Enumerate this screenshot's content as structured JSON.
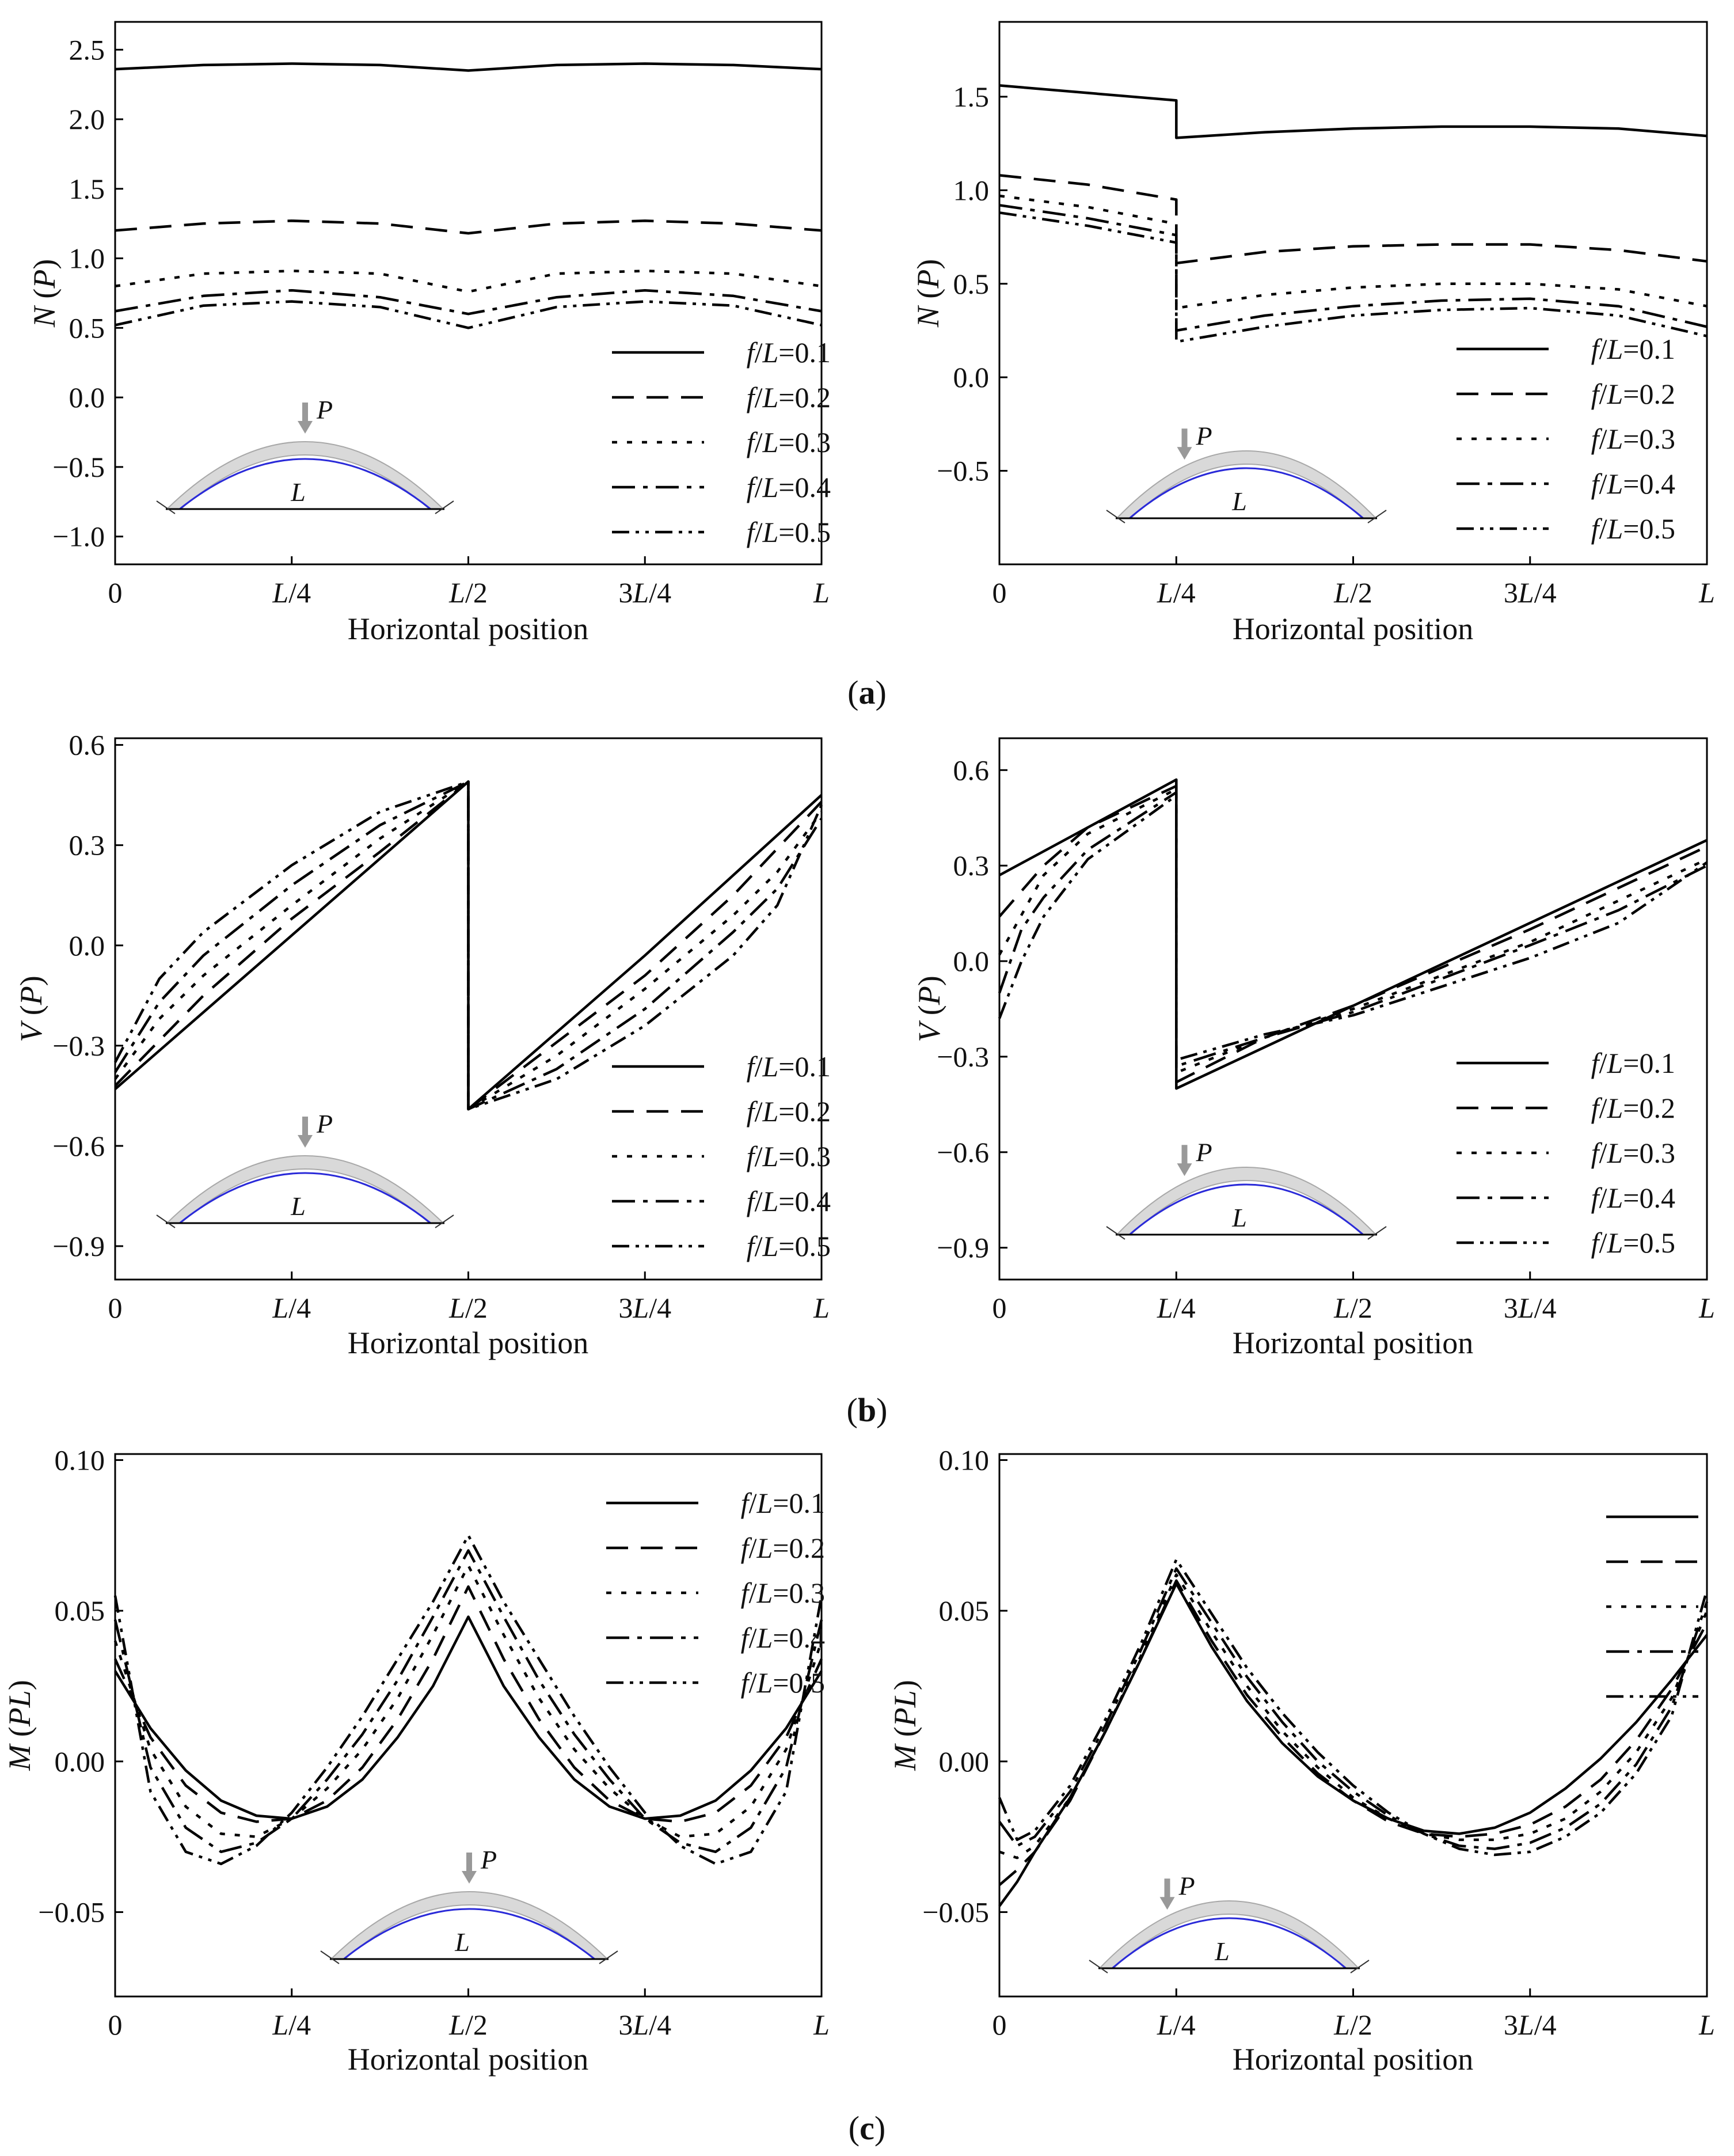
{
  "figure": {
    "x_label": "Horizontal position",
    "x_ticks": [
      "0",
      "L/4",
      "L/2",
      "3L/4",
      "L"
    ],
    "inset_load": "P",
    "inset_span": "L",
    "legend": [
      "f/L=0.1",
      "f/L=0.2",
      "f/L=0.3",
      "f/L=0.4",
      "f/L=0.5"
    ],
    "captions": [
      "a",
      "b",
      "c"
    ],
    "line_color": "#000000",
    "arch_fill": "#d9d9d9",
    "arch_axis_color": "#2a2ad8",
    "load_arrow_color": "#999999"
  },
  "chart_data": [
    {
      "type": "line",
      "id": "a-left",
      "ylabel_symbol": "N",
      "ylabel_unit": "P",
      "load_position": "L/2",
      "ylim": [
        -1.2,
        2.7
      ],
      "yticks": [
        2.5,
        2.0,
        1.5,
        1.0,
        0.5,
        0.0,
        -0.5,
        -1.0
      ],
      "ytick_labels": [
        "2.5",
        "2.0",
        "1.5",
        "1.0",
        "0.5",
        "0.0",
        "−0.5",
        "−1.0"
      ],
      "x": [
        0,
        0.125,
        0.25,
        0.375,
        0.5,
        0.625,
        0.75,
        0.875,
        1.0
      ],
      "series": [
        {
          "name": "f/L=0.1",
          "values": [
            2.36,
            2.39,
            2.4,
            2.39,
            2.35,
            2.39,
            2.4,
            2.39,
            2.36
          ]
        },
        {
          "name": "f/L=0.2",
          "values": [
            1.2,
            1.25,
            1.27,
            1.25,
            1.18,
            1.25,
            1.27,
            1.25,
            1.2
          ]
        },
        {
          "name": "f/L=0.3",
          "values": [
            0.8,
            0.89,
            0.91,
            0.89,
            0.76,
            0.89,
            0.91,
            0.89,
            0.8
          ]
        },
        {
          "name": "f/L=0.4",
          "values": [
            0.62,
            0.73,
            0.77,
            0.72,
            0.6,
            0.72,
            0.77,
            0.73,
            0.62
          ]
        },
        {
          "name": "f/L=0.5",
          "values": [
            0.52,
            0.66,
            0.69,
            0.65,
            0.5,
            0.65,
            0.69,
            0.66,
            0.52
          ]
        }
      ]
    },
    {
      "type": "line",
      "id": "a-right",
      "ylabel_symbol": "N",
      "ylabel_unit": "P",
      "load_position": "L/4",
      "ylim": [
        -1.0,
        1.9
      ],
      "yticks": [
        1.5,
        1.0,
        0.5,
        0.0,
        -0.5
      ],
      "ytick_labels": [
        "1.5",
        "1.0",
        "0.5",
        "0.0",
        "−0.5"
      ],
      "series": [
        {
          "name": "f/L=0.1",
          "x": [
            0,
            0.125,
            0.25,
            0.25,
            0.375,
            0.5,
            0.625,
            0.75,
            0.875,
            1.0
          ],
          "values": [
            1.56,
            1.52,
            1.48,
            1.28,
            1.31,
            1.33,
            1.34,
            1.34,
            1.33,
            1.29
          ]
        },
        {
          "name": "f/L=0.2",
          "x": [
            0,
            0.125,
            0.25,
            0.25,
            0.375,
            0.5,
            0.625,
            0.75,
            0.875,
            1.0
          ],
          "values": [
            1.08,
            1.03,
            0.95,
            0.61,
            0.67,
            0.7,
            0.71,
            0.71,
            0.68,
            0.62
          ]
        },
        {
          "name": "f/L=0.3",
          "x": [
            0,
            0.125,
            0.25,
            0.25,
            0.375,
            0.5,
            0.625,
            0.75,
            0.875,
            1.0
          ],
          "values": [
            0.97,
            0.91,
            0.82,
            0.37,
            0.44,
            0.48,
            0.5,
            0.5,
            0.47,
            0.38
          ]
        },
        {
          "name": "f/L=0.4",
          "x": [
            0,
            0.125,
            0.25,
            0.25,
            0.375,
            0.5,
            0.625,
            0.75,
            0.875,
            1.0
          ],
          "values": [
            0.92,
            0.85,
            0.76,
            0.25,
            0.33,
            0.38,
            0.41,
            0.42,
            0.38,
            0.27
          ]
        },
        {
          "name": "f/L=0.5",
          "x": [
            0,
            0.125,
            0.25,
            0.25,
            0.375,
            0.5,
            0.625,
            0.75,
            0.875,
            1.0
          ],
          "values": [
            0.88,
            0.81,
            0.72,
            0.19,
            0.27,
            0.33,
            0.36,
            0.37,
            0.33,
            0.22
          ]
        }
      ]
    },
    {
      "type": "line",
      "id": "b-left",
      "ylabel_symbol": "V",
      "ylabel_unit": "P",
      "load_position": "L/2",
      "ylim": [
        -1.0,
        0.62
      ],
      "yticks": [
        0.6,
        0.3,
        0.0,
        -0.3,
        -0.6,
        -0.9
      ],
      "ytick_labels": [
        "0.6",
        "0.3",
        "0.0",
        "−0.3",
        "−0.6",
        "−0.9"
      ],
      "series": [
        {
          "name": "f/L=0.1",
          "x": [
            0,
            0.25,
            0.5,
            0.5,
            0.75,
            1.0
          ],
          "values": [
            -0.43,
            0.03,
            0.49,
            -0.49,
            -0.03,
            0.45
          ]
        },
        {
          "name": "f/L=0.2",
          "x": [
            0,
            0.125,
            0.25,
            0.375,
            0.5,
            0.5,
            0.625,
            0.75,
            0.875,
            1.0
          ],
          "values": [
            -0.42,
            -0.15,
            0.08,
            0.28,
            0.49,
            -0.49,
            -0.29,
            -0.09,
            0.15,
            0.43
          ]
        },
        {
          "name": "f/L=0.3",
          "x": [
            0,
            0.0625,
            0.125,
            0.25,
            0.375,
            0.5,
            0.5,
            0.625,
            0.75,
            0.875,
            0.9375,
            1.0
          ],
          "values": [
            -0.4,
            -0.22,
            -0.09,
            0.12,
            0.32,
            0.49,
            -0.49,
            -0.33,
            -0.13,
            0.09,
            0.22,
            0.4
          ]
        },
        {
          "name": "f/L=0.4",
          "x": [
            0,
            0.0625,
            0.125,
            0.25,
            0.375,
            0.5,
            0.5,
            0.625,
            0.75,
            0.875,
            0.9375,
            1.0
          ],
          "values": [
            -0.38,
            -0.17,
            -0.03,
            0.18,
            0.36,
            0.49,
            -0.49,
            -0.37,
            -0.19,
            0.04,
            0.17,
            0.38
          ]
        },
        {
          "name": "f/L=0.5",
          "x": [
            0,
            0.0625,
            0.125,
            0.25,
            0.375,
            0.5,
            0.5,
            0.625,
            0.75,
            0.875,
            0.9375,
            1.0
          ],
          "values": [
            -0.35,
            -0.1,
            0.04,
            0.24,
            0.4,
            0.49,
            -0.49,
            -0.4,
            -0.24,
            -0.03,
            0.12,
            0.42
          ]
        }
      ]
    },
    {
      "type": "line",
      "id": "b-right",
      "ylabel_symbol": "V",
      "ylabel_unit": "P",
      "load_position": "L/4",
      "ylim": [
        -1.0,
        0.7
      ],
      "yticks": [
        0.6,
        0.3,
        0.0,
        -0.3,
        -0.6,
        -0.9
      ],
      "ytick_labels": [
        "0.6",
        "0.3",
        "0.0",
        "−0.3",
        "−0.6",
        "−0.9"
      ],
      "series": [
        {
          "name": "f/L=0.1",
          "x": [
            0,
            0.25,
            0.25,
            0.5,
            0.75,
            1.0
          ],
          "values": [
            0.27,
            0.57,
            -0.4,
            -0.14,
            0.12,
            0.38
          ]
        },
        {
          "name": "f/L=0.2",
          "x": [
            0,
            0.0625,
            0.125,
            0.25,
            0.25,
            0.375,
            0.5,
            0.75,
            1.0
          ],
          "values": [
            0.14,
            0.3,
            0.42,
            0.55,
            -0.38,
            -0.24,
            -0.14,
            0.1,
            0.36
          ]
        },
        {
          "name": "f/L=0.3",
          "x": [
            0,
            0.0625,
            0.125,
            0.25,
            0.25,
            0.375,
            0.5,
            0.75,
            1.0
          ],
          "values": [
            0.02,
            0.27,
            0.4,
            0.54,
            -0.35,
            -0.24,
            -0.15,
            0.06,
            0.32
          ]
        },
        {
          "name": "f/L=0.4",
          "x": [
            0,
            0.03125,
            0.0625,
            0.125,
            0.25,
            0.25,
            0.375,
            0.5,
            0.75,
            0.875,
            1.0
          ],
          "values": [
            -0.1,
            0.1,
            0.2,
            0.35,
            0.53,
            -0.33,
            -0.24,
            -0.16,
            0.05,
            0.16,
            0.3
          ]
        },
        {
          "name": "f/L=0.5",
          "x": [
            0,
            0.03125,
            0.0625,
            0.125,
            0.25,
            0.25,
            0.375,
            0.5,
            0.75,
            0.875,
            1.0
          ],
          "values": [
            -0.18,
            0.0,
            0.14,
            0.32,
            0.52,
            -0.31,
            -0.23,
            -0.17,
            0.01,
            0.12,
            0.31
          ]
        }
      ]
    },
    {
      "type": "line",
      "id": "c-left",
      "ylabel_symbol": "M",
      "ylabel_unit": "PL",
      "load_position": "L/2",
      "ylim": [
        -0.078,
        0.102
      ],
      "yticks": [
        0.1,
        0.05,
        0.0,
        -0.05
      ],
      "ytick_labels": [
        "0.10",
        "0.05",
        "0.00",
        "−0.05"
      ],
      "x": [
        0,
        0.05,
        0.1,
        0.15,
        0.2,
        0.25,
        0.3,
        0.35,
        0.4,
        0.45,
        0.5,
        0.55,
        0.6,
        0.65,
        0.7,
        0.75,
        0.8,
        0.85,
        0.9,
        0.95,
        1.0
      ],
      "series": [
        {
          "name": "f/L=0.1",
          "values": [
            0.03,
            0.011,
            -0.003,
            -0.013,
            -0.018,
            -0.019,
            -0.015,
            -0.006,
            0.008,
            0.025,
            0.048,
            0.025,
            0.008,
            -0.006,
            -0.015,
            -0.019,
            -0.018,
            -0.013,
            -0.003,
            0.011,
            0.03
          ]
        },
        {
          "name": "f/L=0.2",
          "values": [
            0.034,
            0.008,
            -0.008,
            -0.017,
            -0.02,
            -0.019,
            -0.013,
            -0.002,
            0.014,
            0.034,
            0.058,
            0.034,
            0.014,
            -0.002,
            -0.013,
            -0.019,
            -0.02,
            -0.017,
            -0.008,
            0.008,
            0.034
          ]
        },
        {
          "name": "f/L=0.3",
          "values": [
            0.04,
            0.004,
            -0.015,
            -0.024,
            -0.025,
            -0.019,
            -0.009,
            0.004,
            0.021,
            0.042,
            0.065,
            0.042,
            0.021,
            0.004,
            -0.009,
            -0.019,
            -0.025,
            -0.024,
            -0.015,
            0.004,
            0.04
          ]
        },
        {
          "name": "f/L=0.4",
          "values": [
            0.047,
            -0.002,
            -0.022,
            -0.03,
            -0.027,
            -0.019,
            -0.006,
            0.009,
            0.027,
            0.048,
            0.07,
            0.048,
            0.027,
            0.009,
            -0.006,
            -0.019,
            -0.027,
            -0.03,
            -0.022,
            -0.002,
            0.047
          ]
        },
        {
          "name": "f/L=0.5",
          "values": [
            0.055,
            -0.01,
            -0.03,
            -0.034,
            -0.028,
            -0.017,
            -0.002,
            0.015,
            0.034,
            0.053,
            0.075,
            0.053,
            0.034,
            0.015,
            -0.002,
            -0.017,
            -0.028,
            -0.034,
            -0.03,
            -0.01,
            0.055
          ]
        }
      ]
    },
    {
      "type": "line",
      "id": "c-right",
      "ylabel_symbol": "M",
      "ylabel_unit": "PL",
      "load_position": "L/4",
      "ylim": [
        -0.078,
        0.102
      ],
      "yticks": [
        0.1,
        0.05,
        0.0,
        -0.05
      ],
      "ytick_labels": [
        "0.10",
        "0.05",
        "0.00",
        "−0.05"
      ],
      "x": [
        0,
        0.025,
        0.05,
        0.1,
        0.15,
        0.2,
        0.25,
        0.3,
        0.35,
        0.4,
        0.45,
        0.5,
        0.55,
        0.6,
        0.65,
        0.7,
        0.75,
        0.8,
        0.85,
        0.9,
        0.95,
        1.0
      ],
      "series": [
        {
          "name": "f/L=0.1",
          "values": [
            -0.048,
            -0.04,
            -0.03,
            -0.012,
            0.01,
            0.034,
            0.059,
            0.038,
            0.02,
            0.006,
            -0.005,
            -0.013,
            -0.019,
            -0.023,
            -0.024,
            -0.022,
            -0.017,
            -0.009,
            0.001,
            0.013,
            0.027,
            0.042
          ]
        },
        {
          "name": "f/L=0.2",
          "values": [
            -0.041,
            -0.036,
            -0.03,
            -0.013,
            0.01,
            0.034,
            0.06,
            0.04,
            0.022,
            0.008,
            -0.004,
            -0.013,
            -0.02,
            -0.024,
            -0.025,
            -0.024,
            -0.021,
            -0.015,
            -0.006,
            0.007,
            0.024,
            0.046
          ]
        },
        {
          "name": "f/L=0.3",
          "values": [
            -0.03,
            -0.032,
            -0.028,
            -0.012,
            0.01,
            0.035,
            0.062,
            0.043,
            0.025,
            0.01,
            -0.002,
            -0.012,
            -0.019,
            -0.024,
            -0.026,
            -0.026,
            -0.024,
            -0.019,
            -0.01,
            0.003,
            0.021,
            0.05
          ]
        },
        {
          "name": "f/L=0.4",
          "values": [
            -0.02,
            -0.028,
            -0.025,
            -0.01,
            0.012,
            0.037,
            0.064,
            0.046,
            0.028,
            0.013,
            0.0,
            -0.01,
            -0.018,
            -0.024,
            -0.028,
            -0.029,
            -0.027,
            -0.022,
            -0.014,
            -0.001,
            0.018,
            0.053
          ]
        },
        {
          "name": "f/L=0.5",
          "values": [
            -0.012,
            -0.026,
            -0.023,
            -0.008,
            0.014,
            0.039,
            0.067,
            0.049,
            0.031,
            0.016,
            0.003,
            -0.008,
            -0.017,
            -0.024,
            -0.029,
            -0.031,
            -0.03,
            -0.025,
            -0.017,
            -0.004,
            0.015,
            0.057
          ]
        }
      ]
    }
  ]
}
